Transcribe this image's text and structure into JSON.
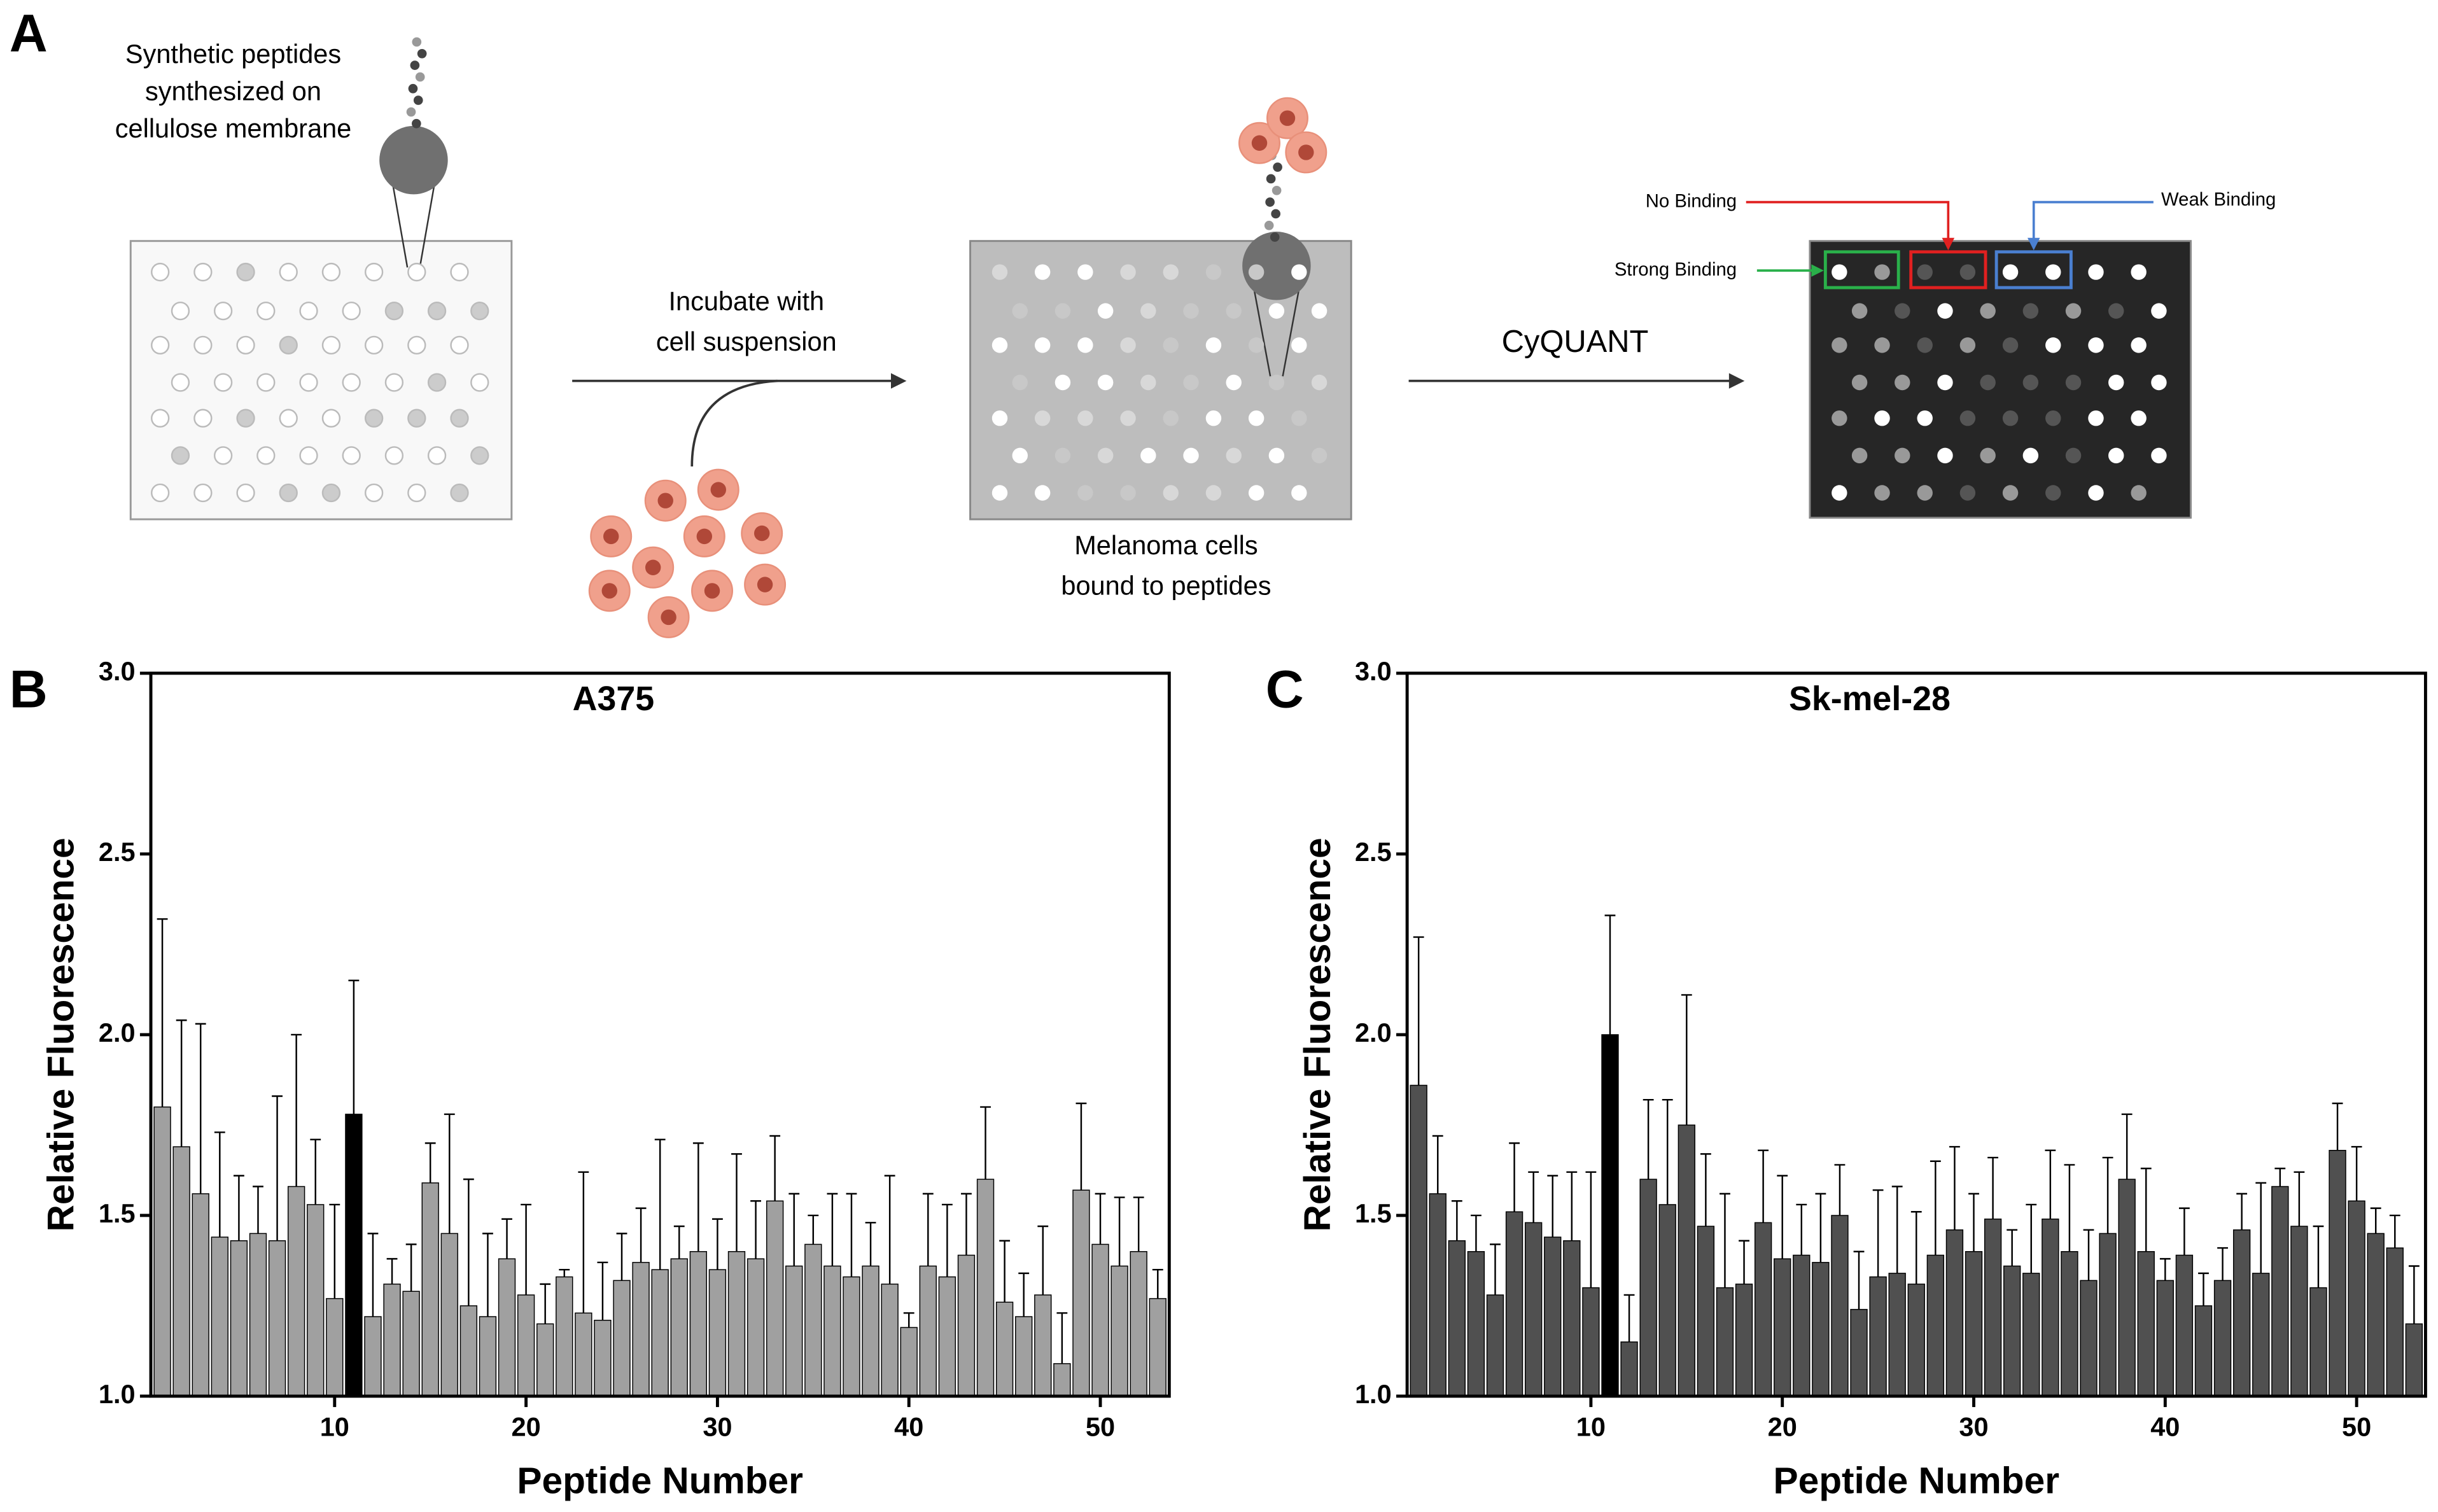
{
  "panel_labels": [
    "A",
    "B",
    "C"
  ],
  "diagram": {
    "membrane_caption": [
      "Synthetic peptides",
      "synthesized on",
      "cellulose membrane"
    ],
    "incubate": [
      "Incubate with",
      "cell suspension"
    ],
    "bound_caption": [
      "Melanoma cells",
      "bound to peptides"
    ],
    "assay": "CyQUANT",
    "legend": {
      "no": "No Binding",
      "weak": "Weak Binding",
      "strong": "Strong Binding"
    }
  },
  "chart_data": [
    {
      "type": "bar",
      "title": "A375",
      "x_label": "Peptide Number",
      "y_label": "Relative Fluorescence",
      "x": [
        1,
        2,
        3,
        4,
        5,
        6,
        7,
        8,
        9,
        10,
        11,
        12,
        13,
        14,
        15,
        16,
        17,
        18,
        19,
        20,
        21,
        22,
        23,
        24,
        25,
        26,
        27,
        28,
        29,
        30,
        31,
        32,
        33,
        34,
        35,
        36,
        37,
        38,
        39,
        40,
        41,
        42,
        43,
        44,
        45,
        46,
        47,
        48,
        49,
        50,
        51,
        52,
        53
      ],
      "values": [
        1.8,
        1.69,
        1.56,
        1.44,
        1.43,
        1.45,
        1.43,
        1.58,
        1.53,
        1.27,
        1.78,
        1.22,
        1.31,
        1.29,
        1.59,
        1.45,
        1.25,
        1.22,
        1.38,
        1.28,
        1.2,
        1.33,
        1.23,
        1.21,
        1.32,
        1.37,
        1.35,
        1.38,
        1.4,
        1.35,
        1.4,
        1.38,
        1.54,
        1.36,
        1.42,
        1.36,
        1.33,
        1.36,
        1.31,
        1.19,
        1.36,
        1.33,
        1.39,
        1.6,
        1.26,
        1.22,
        1.28,
        1.09,
        1.57,
        1.42,
        1.36,
        1.4,
        1.27
      ],
      "errors": [
        0.52,
        0.35,
        0.47,
        0.29,
        0.18,
        0.13,
        0.4,
        0.42,
        0.18,
        0.26,
        0.37,
        0.23,
        0.07,
        0.13,
        0.11,
        0.33,
        0.35,
        0.23,
        0.11,
        0.25,
        0.11,
        0.02,
        0.39,
        0.16,
        0.13,
        0.15,
        0.36,
        0.09,
        0.3,
        0.14,
        0.27,
        0.16,
        0.18,
        0.2,
        0.08,
        0.2,
        0.23,
        0.12,
        0.3,
        0.04,
        0.2,
        0.2,
        0.17,
        0.2,
        0.17,
        0.12,
        0.19,
        0.14,
        0.24,
        0.14,
        0.19,
        0.15,
        0.08
      ],
      "colors": [
        "#a0a0a0",
        "#a0a0a0",
        "#a0a0a0",
        "#a0a0a0",
        "#a0a0a0",
        "#a0a0a0",
        "#a0a0a0",
        "#a0a0a0",
        "#a0a0a0",
        "#a0a0a0",
        "#000000",
        "#a0a0a0",
        "#a0a0a0",
        "#a0a0a0",
        "#a0a0a0",
        "#a0a0a0",
        "#a0a0a0",
        "#a0a0a0",
        "#a0a0a0",
        "#a0a0a0",
        "#a0a0a0",
        "#a0a0a0",
        "#a0a0a0",
        "#a0a0a0",
        "#a0a0a0",
        "#a0a0a0",
        "#a0a0a0",
        "#a0a0a0",
        "#a0a0a0",
        "#a0a0a0",
        "#a0a0a0",
        "#a0a0a0",
        "#a0a0a0",
        "#a0a0a0",
        "#a0a0a0",
        "#a0a0a0",
        "#a0a0a0",
        "#a0a0a0",
        "#a0a0a0",
        "#a0a0a0",
        "#a0a0a0",
        "#a0a0a0",
        "#a0a0a0",
        "#a0a0a0",
        "#a0a0a0",
        "#a0a0a0",
        "#a0a0a0",
        "#a0a0a0",
        "#a0a0a0",
        "#a0a0a0",
        "#a0a0a0",
        "#a0a0a0",
        "#a0a0a0"
      ],
      "xlim": [
        0.4,
        53.6
      ],
      "xticks": [
        10,
        20,
        30,
        40,
        50
      ],
      "ylim": [
        1.0,
        3.0
      ],
      "yticks": [
        {
          "value": 1.0,
          "label": "1.0"
        },
        {
          "value": 1.5,
          "label": "1.5"
        },
        {
          "value": 2.0,
          "label": "2.0"
        },
        {
          "value": 2.5,
          "label": "2.5"
        },
        {
          "value": 3.0,
          "label": "3.0"
        }
      ]
    },
    {
      "type": "bar",
      "title": "Sk-mel-28",
      "x_label": "Peptide Number",
      "y_label": "Relative Fluorescence",
      "x": [
        1,
        2,
        3,
        4,
        5,
        6,
        7,
        8,
        9,
        10,
        11,
        12,
        13,
        14,
        15,
        16,
        17,
        18,
        19,
        20,
        21,
        22,
        23,
        24,
        25,
        26,
        27,
        28,
        29,
        30,
        31,
        32,
        33,
        34,
        35,
        36,
        37,
        38,
        39,
        40,
        41,
        42,
        43,
        44,
        45,
        46,
        47,
        48,
        49,
        50,
        51,
        52,
        53
      ],
      "values": [
        1.86,
        1.56,
        1.43,
        1.4,
        1.28,
        1.51,
        1.48,
        1.44,
        1.43,
        1.3,
        2.0,
        1.15,
        1.6,
        1.53,
        1.75,
        1.47,
        1.3,
        1.31,
        1.48,
        1.38,
        1.39,
        1.37,
        1.5,
        1.24,
        1.33,
        1.34,
        1.31,
        1.39,
        1.46,
        1.4,
        1.49,
        1.36,
        1.34,
        1.49,
        1.4,
        1.32,
        1.45,
        1.6,
        1.4,
        1.32,
        1.39,
        1.25,
        1.32,
        1.46,
        1.34,
        1.58,
        1.47,
        1.3,
        1.68,
        1.54,
        1.45,
        1.41,
        1.2
      ],
      "errors": [
        0.41,
        0.16,
        0.11,
        0.1,
        0.14,
        0.19,
        0.14,
        0.17,
        0.19,
        0.32,
        0.33,
        0.13,
        0.22,
        0.29,
        0.36,
        0.2,
        0.26,
        0.12,
        0.2,
        0.23,
        0.14,
        0.19,
        0.14,
        0.16,
        0.24,
        0.24,
        0.2,
        0.26,
        0.23,
        0.16,
        0.17,
        0.1,
        0.19,
        0.19,
        0.24,
        0.14,
        0.21,
        0.18,
        0.23,
        0.06,
        0.13,
        0.09,
        0.09,
        0.1,
        0.25,
        0.05,
        0.15,
        0.17,
        0.13,
        0.15,
        0.07,
        0.09,
        0.16
      ],
      "colors": [
        "#505050",
        "#505050",
        "#505050",
        "#505050",
        "#505050",
        "#505050",
        "#505050",
        "#505050",
        "#505050",
        "#505050",
        "#000000",
        "#505050",
        "#505050",
        "#505050",
        "#505050",
        "#505050",
        "#505050",
        "#505050",
        "#505050",
        "#505050",
        "#505050",
        "#505050",
        "#505050",
        "#505050",
        "#505050",
        "#505050",
        "#505050",
        "#505050",
        "#505050",
        "#505050",
        "#505050",
        "#505050",
        "#505050",
        "#505050",
        "#505050",
        "#505050",
        "#505050",
        "#505050",
        "#505050",
        "#505050",
        "#505050",
        "#505050",
        "#505050",
        "#505050",
        "#505050",
        "#505050",
        "#505050",
        "#505050",
        "#505050",
        "#505050",
        "#505050",
        "#505050",
        "#505050"
      ],
      "xlim": [
        0.4,
        53.6
      ],
      "xticks": [
        10,
        20,
        30,
        40,
        50
      ],
      "ylim": [
        1.0,
        3.0
      ],
      "yticks": [
        {
          "value": 1.0,
          "label": "1.0"
        },
        {
          "value": 1.5,
          "label": "1.5"
        },
        {
          "value": 2.0,
          "label": "2.0"
        },
        {
          "value": 2.5,
          "label": "2.5"
        },
        {
          "value": 3.0,
          "label": "3.0"
        }
      ]
    }
  ]
}
